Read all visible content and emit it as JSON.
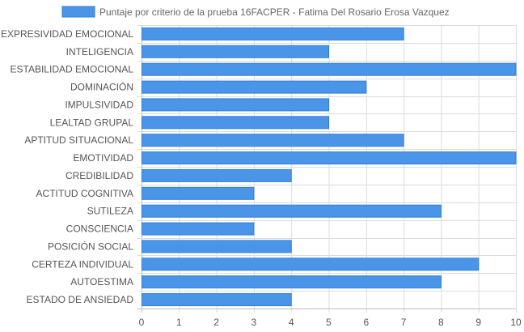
{
  "chart_data": {
    "type": "bar",
    "orientation": "horizontal",
    "categories": [
      "EXPRESIVIDAD EMOCIONAL",
      "INTELIGENCIA",
      "ESTABILIDAD EMOCIONAL",
      "DOMINACIÓN",
      "IMPULSIVIDAD",
      "LEALTAD GRUPAL",
      "APTITUD SITUACIONAL",
      "EMOTIVIDAD",
      "CREDIBILIDAD",
      "ACTITUD COGNITIVA",
      "SUTILEZA",
      "CONSCIENCIA",
      "POSICIÓN SOCIAL",
      "CERTEZA INDIVIDUAL",
      "AUTOESTIMA",
      "ESTADO DE ANSIEDAD"
    ],
    "series": [
      {
        "name": "Puntaje por criterio de la prueba 16FACPER - Fatima Del Rosario Erosa Vazquez",
        "values": [
          7,
          5,
          10,
          6,
          5,
          5,
          7,
          10,
          4,
          3,
          8,
          3,
          4,
          9,
          8,
          4
        ]
      }
    ],
    "xlim": [
      0,
      10
    ],
    "x_ticks": [
      "0",
      "1",
      "2",
      "3",
      "4",
      "5",
      "6",
      "7",
      "8",
      "9",
      "10"
    ],
    "grid": true,
    "legend": "top-center",
    "colors": {
      "bar_fill": "#4a95e8",
      "bar_stroke": "#2f7fdc"
    }
  }
}
